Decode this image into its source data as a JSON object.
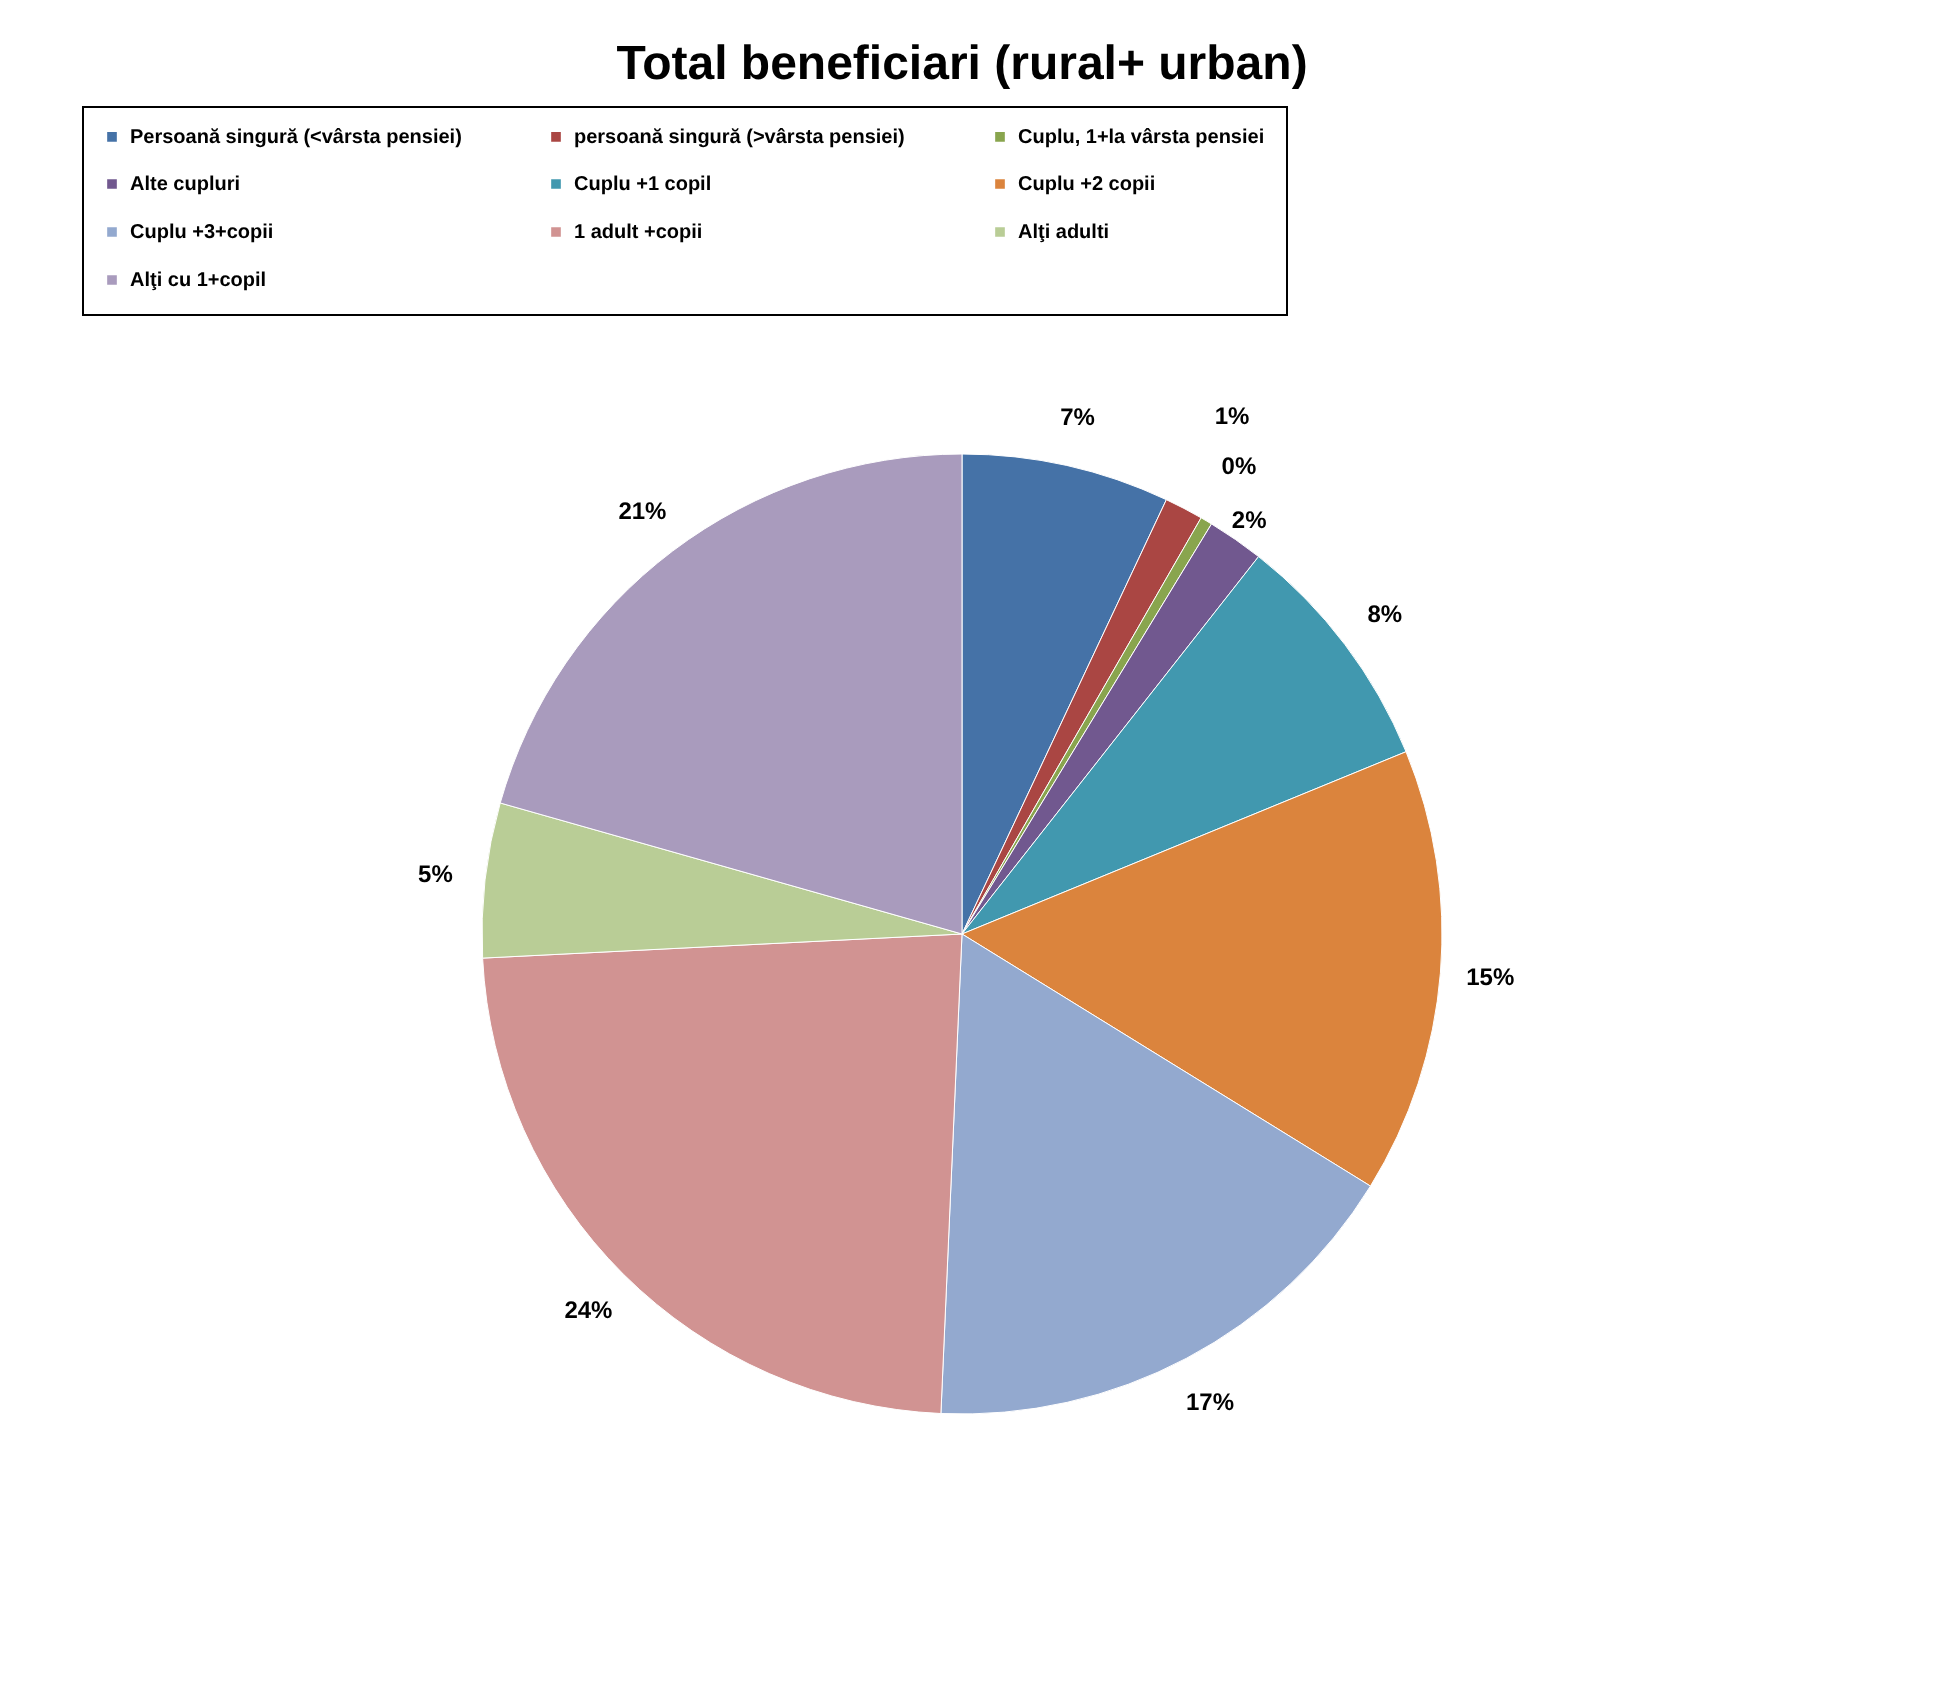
{
  "chart_data": {
    "type": "pie",
    "title": "Total beneficiari (rural+ urban)",
    "categories": [
      "Persoană singură (<vârsta pensiei)",
      "persoană singură (>vârsta pensiei)",
      "Cuplu, 1+la vârsta pensiei",
      "Alte cupluri",
      "Cuplu +1 copil",
      "Cuplu +2 copii",
      "Cuplu +3+copii",
      "1 adult +copii",
      "Alţi adulti",
      "Alţi cu 1+copil"
    ],
    "values": [
      7.0,
      1.3,
      0.4,
      1.9,
      8.2,
      15.0,
      16.9,
      23.5,
      5.2,
      20.6
    ],
    "value_labels": [
      "7%",
      "1%",
      "0%",
      "2%",
      "8%",
      "15%",
      "17%",
      "24%",
      "5%",
      "21%"
    ],
    "colors": [
      "#4572a7",
      "#aa4643",
      "#89a54e",
      "#71588f",
      "#4198af",
      "#db843d",
      "#93a9cf",
      "#d19392",
      "#b9cd96",
      "#a99bbd"
    ],
    "legend": "top"
  }
}
